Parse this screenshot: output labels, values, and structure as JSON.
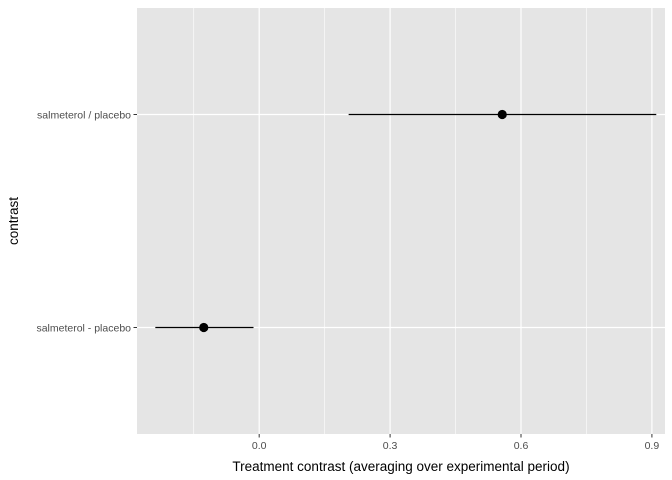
{
  "chart_data": {
    "type": "scatter",
    "subtype": "point-range (dot-and-whisker)",
    "title": "",
    "xlabel": "Treatment contrast (averaging over experimental period)",
    "ylabel": "contrast",
    "xlim": [
      -0.28,
      0.93
    ],
    "x_ticks": [
      0.0,
      0.3,
      0.6,
      0.9
    ],
    "x_tick_labels": [
      "0.0",
      "0.3",
      "0.6",
      "0.9"
    ],
    "categories": [
      "salmeterol / placebo",
      "salmeterol - placebo"
    ],
    "series": [
      {
        "points": [
          {
            "category": "salmeterol / placebo",
            "estimate": 0.557,
            "lower": 0.205,
            "upper": 0.91
          },
          {
            "category": "salmeterol - placebo",
            "estimate": -0.127,
            "lower": -0.238,
            "upper": -0.013
          }
        ]
      }
    ],
    "grid": true,
    "legend": "none",
    "colors": {
      "panel_background": "#e5e5e5",
      "gridline": "#ffffff",
      "point": "#000000",
      "errorbar": "#000000"
    }
  }
}
